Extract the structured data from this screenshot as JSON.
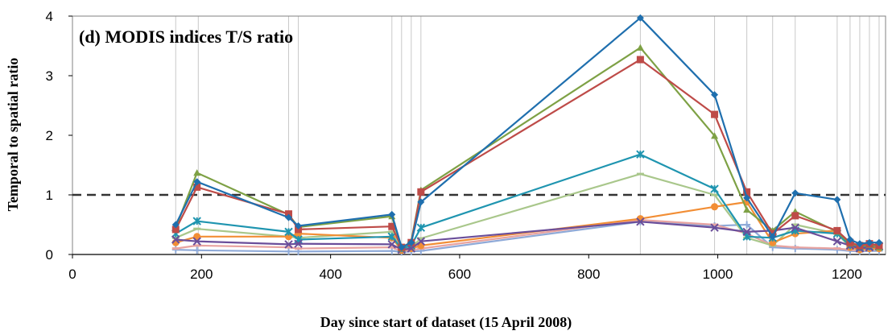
{
  "chart_data": {
    "type": "line",
    "title": "(d) MODIS indices T/S ratio",
    "xlabel": "Day since start of dataset (15 April 2008)",
    "ylabel": "Temporal to spatial ratio",
    "xlim": [
      0,
      1260
    ],
    "ylim": [
      0,
      4
    ],
    "xticks": [
      "0",
      "200",
      "400",
      "600",
      "800",
      "1000",
      "1200"
    ],
    "yticks": [
      "0",
      "1",
      "2",
      "3",
      "4"
    ],
    "reference_line": 1,
    "vertical_gridlines": [
      160,
      195,
      335,
      350,
      495,
      510,
      525,
      540,
      880,
      995,
      1045,
      1085,
      1120,
      1185,
      1205,
      1220,
      1235,
      1250
    ],
    "x": [
      160,
      193,
      335,
      350,
      495,
      510,
      525,
      540,
      880,
      995,
      1045,
      1085,
      1120,
      1185,
      1205,
      1220,
      1235,
      1250
    ],
    "series": [
      {
        "color": "#1F6FAE",
        "marker": "diamond",
        "values": [
          0.5,
          1.22,
          0.62,
          0.48,
          0.67,
          0.12,
          0.2,
          0.88,
          3.97,
          2.68,
          0.95,
          0.3,
          1.03,
          0.92,
          0.25,
          0.18,
          0.2,
          0.2
        ]
      },
      {
        "color": "#BE4B48",
        "marker": "square",
        "values": [
          0.42,
          1.13,
          0.68,
          0.42,
          0.47,
          0.12,
          0.2,
          1.05,
          3.27,
          2.35,
          1.05,
          0.35,
          0.65,
          0.4,
          0.2,
          0.15,
          0.18,
          0.15
        ]
      },
      {
        "color": "#7EA145",
        "marker": "triangle",
        "values": [
          0.45,
          1.37,
          0.67,
          0.46,
          0.64,
          0.1,
          0.22,
          1.08,
          3.47,
          1.99,
          0.75,
          0.4,
          0.72,
          0.38,
          0.18,
          0.14,
          0.16,
          0.12
        ]
      },
      {
        "color": "#6A4E9A",
        "marker": "x",
        "values": [
          0.25,
          0.22,
          0.17,
          0.18,
          0.17,
          0.08,
          0.1,
          0.22,
          0.55,
          0.45,
          0.38,
          0.4,
          0.45,
          0.22,
          0.15,
          0.1,
          0.12,
          0.14
        ]
      },
      {
        "color": "#1F95B0",
        "marker": "star",
        "values": [
          0.35,
          0.56,
          0.38,
          0.25,
          0.3,
          0.1,
          0.15,
          0.45,
          1.68,
          1.1,
          0.3,
          0.28,
          0.4,
          0.35,
          0.15,
          0.12,
          0.13,
          0.13
        ]
      },
      {
        "color": "#F28E35",
        "marker": "circle",
        "values": [
          0.2,
          0.3,
          0.3,
          0.35,
          0.28,
          0.07,
          0.1,
          0.15,
          0.6,
          0.8,
          0.88,
          0.2,
          0.35,
          0.4,
          0.12,
          0.08,
          0.1,
          0.1
        ]
      },
      {
        "color": "#A9C78B",
        "marker": "dash",
        "values": [
          0.28,
          0.43,
          0.3,
          0.28,
          0.38,
          0.09,
          0.12,
          0.27,
          1.35,
          1.0,
          0.28,
          0.15,
          0.5,
          0.35,
          0.12,
          0.1,
          0.1,
          0.1
        ]
      },
      {
        "color": "#E8A3A0",
        "marker": "dash",
        "values": [
          0.1,
          0.15,
          0.12,
          0.1,
          0.12,
          0.05,
          0.07,
          0.1,
          0.58,
          0.5,
          0.35,
          0.15,
          0.12,
          0.1,
          0.08,
          0.06,
          0.08,
          0.08
        ]
      },
      {
        "color": "#8FAAD8",
        "marker": "plus",
        "values": [
          0.08,
          0.07,
          0.05,
          0.05,
          0.06,
          0.04,
          0.05,
          0.06,
          0.55,
          0.48,
          0.5,
          0.12,
          0.1,
          0.08,
          0.06,
          0.05,
          0.06,
          0.06
        ]
      }
    ]
  }
}
